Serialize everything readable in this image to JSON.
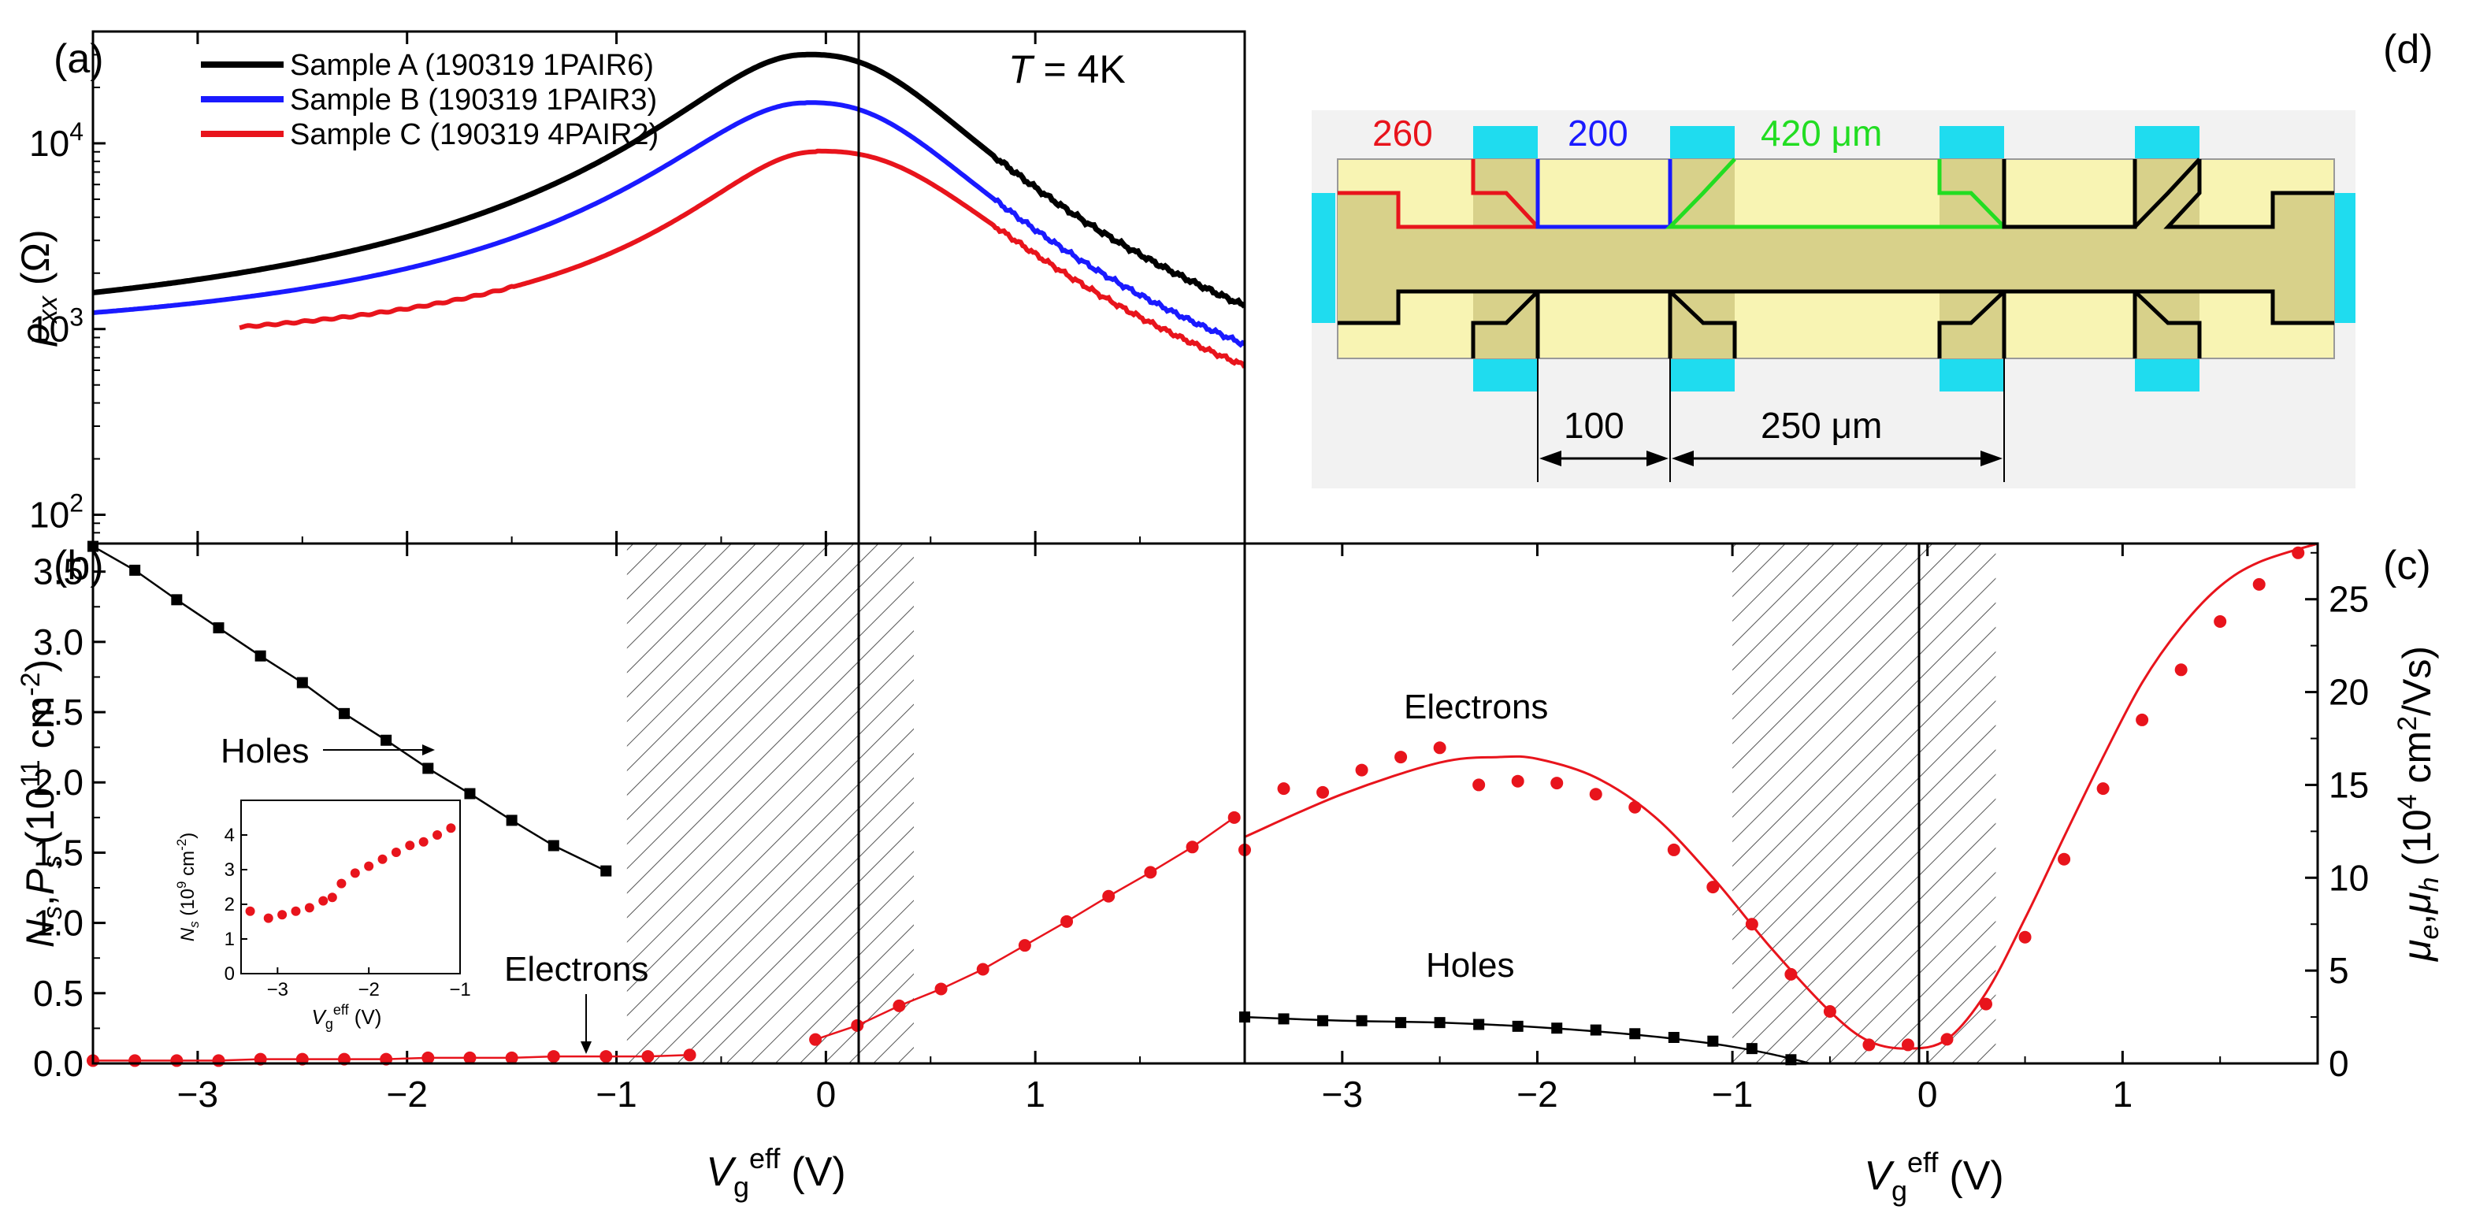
{
  "colors": {
    "black": "#000000",
    "blue": "#1a1aff",
    "red": "#e8141c",
    "cyan": "#1fdcef",
    "pad": "#d8d18a",
    "bar": "#f8f4b3",
    "bg": "#f2f2f2",
    "green": "#22dd22"
  },
  "chart_data": [
    {
      "panel": "(a)",
      "type": "line",
      "xlim": [
        -3.5,
        2.0
      ],
      "ylim": [
        70,
        40000
      ],
      "yscale": "log",
      "ylabel_main": "ρ",
      "ylabel_sub": "xx",
      "ylabel_unit": " (Ω)",
      "annotation_T": "T",
      "annotation_rest": " = 4K",
      "ytick_labels": [
        {
          "val": 100,
          "base": "10",
          "exp": "2"
        },
        {
          "val": 1000,
          "base": "10",
          "exp": "3"
        },
        {
          "val": 10000,
          "base": "10",
          "exp": "4"
        }
      ],
      "series": [
        {
          "name": "Sample A (190319 1PAIR6)",
          "color": "#000000",
          "v0": -0.1,
          "rmax": 30000,
          "rinf": 800,
          "sl": 0.56,
          "srp": 0.5,
          "r2": 0.63,
          "xstart": -3.5
        },
        {
          "name": "Sample B (190319 1PAIR3)",
          "color": "#1a1aff",
          "v0": -0.1,
          "rmax": 16500,
          "rinf": 780,
          "sl": 0.58,
          "srp": 0.5,
          "r2": 0.65,
          "xstart": -3.5
        },
        {
          "name": "Sample C (190319 4PAIR2)",
          "color": "#e8141c",
          "v0": -0.05,
          "rmax": 9000,
          "rinf": 740,
          "sl": 0.52,
          "srp": 0.5,
          "r2": 0.72,
          "xstart": -2.8
        }
      ]
    },
    {
      "panel": "(b)",
      "type": "scatter",
      "xlim": [
        -3.5,
        2.0
      ],
      "ylim": [
        0,
        3.7
      ],
      "ylabel": "N_s,P_s (10^11 cm^-2)",
      "xlabel": "V_g^eff (V)",
      "xtick_labels": [
        "−3",
        "−2",
        "−1",
        "0",
        "1"
      ],
      "ytick_labels": [
        "0.0",
        "0.5",
        "1.0",
        "1.5",
        "2.0",
        "2.5",
        "3.0",
        "3.5"
      ],
      "hatch_range": [
        -0.95,
        0.42
      ],
      "series": [
        {
          "name": "Holes",
          "color": "#000000",
          "x": [
            -3.5,
            -3.3,
            -3.1,
            -2.9,
            -2.7,
            -2.5,
            -2.3,
            -2.1,
            -1.9,
            -1.7,
            -1.5,
            -1.3,
            -1.05
          ],
          "y": [
            3.68,
            3.51,
            3.3,
            3.1,
            2.9,
            2.71,
            2.49,
            2.3,
            2.1,
            1.92,
            1.73,
            1.55,
            1.37
          ]
        },
        {
          "name": "Electrons",
          "color": "#e8141c",
          "x": [
            -3.5,
            -3.3,
            -3.1,
            -2.9,
            -2.7,
            -2.5,
            -2.3,
            -2.1,
            -1.9,
            -1.7,
            -1.5,
            -1.3,
            -1.05,
            -0.85,
            -0.65,
            -0.05,
            0.15,
            0.35,
            0.55,
            0.75,
            0.95,
            1.15,
            1.35,
            1.55,
            1.75,
            1.95
          ],
          "y": [
            0.02,
            0.02,
            0.02,
            0.02,
            0.03,
            0.03,
            0.03,
            0.03,
            0.04,
            0.04,
            0.04,
            0.05,
            0.05,
            0.05,
            0.06,
            0.17,
            0.27,
            0.41,
            0.53,
            0.67,
            0.84,
            1.01,
            1.19,
            1.36,
            1.54,
            1.75
          ]
        }
      ],
      "labels": {
        "holes": "Holes",
        "electrons": "Electrons"
      },
      "inset": {
        "xlim": [
          -3.4,
          -1.0
        ],
        "ylim": [
          0,
          5
        ],
        "ylabel": "N_s (10^9 cm^-2)",
        "xlabel": "V_g^eff (V)",
        "xtick_labels": [
          "−3",
          "−2",
          "−1"
        ],
        "ytick_labels": [
          "0",
          "1",
          "2",
          "3",
          "4"
        ],
        "x": [
          -3.3,
          -3.1,
          -2.95,
          -2.8,
          -2.65,
          -2.5,
          -2.4,
          -2.3,
          -2.15,
          -2.0,
          -1.85,
          -1.7,
          -1.55,
          -1.4,
          -1.25,
          -1.1
        ],
        "y": [
          1.8,
          1.6,
          1.7,
          1.8,
          1.9,
          2.1,
          2.2,
          2.6,
          2.9,
          3.1,
          3.3,
          3.5,
          3.7,
          3.8,
          4.0,
          4.2
        ]
      }
    },
    {
      "panel": "(c)",
      "type": "scatter",
      "xlim": [
        -3.5,
        2.0
      ],
      "ylim": [
        0,
        28
      ],
      "ylabel": "μ_e,μ_h (10^4 cm^2/Vs)",
      "xlabel": "V_g^eff (V)",
      "xtick_labels": [
        "−3",
        "−2",
        "−1",
        "0",
        "1"
      ],
      "ytick_labels": [
        "0",
        "5",
        "10",
        "15",
        "20",
        "25"
      ],
      "hatch_range": [
        -1.0,
        0.35
      ],
      "series": [
        {
          "name": "Electrons",
          "color": "#e8141c",
          "x": [
            -3.5,
            -3.3,
            -3.1,
            -2.9,
            -2.7,
            -2.5,
            -2.3,
            -2.1,
            -1.9,
            -1.7,
            -1.5,
            -1.3,
            -1.1,
            -0.9,
            -0.7,
            -0.5,
            -0.3,
            -0.1,
            0.1,
            0.3,
            0.5,
            0.7,
            0.9,
            1.1,
            1.3,
            1.5,
            1.7,
            1.9
          ],
          "y": [
            11.5,
            14.8,
            14.6,
            15.8,
            16.5,
            17.0,
            15.0,
            15.2,
            15.1,
            14.5,
            13.8,
            11.5,
            9.5,
            7.5,
            4.8,
            2.8,
            1.0,
            1.0,
            1.3,
            3.2,
            6.8,
            11.0,
            14.8,
            18.5,
            21.2,
            23.8,
            25.8,
            27.5
          ]
        },
        {
          "name": "Holes",
          "color": "#000000",
          "x": [
            -3.5,
            -3.3,
            -3.1,
            -2.9,
            -2.7,
            -2.5,
            -2.3,
            -2.1,
            -1.9,
            -1.7,
            -1.5,
            -1.3,
            -1.1,
            -0.9,
            -0.7
          ],
          "y": [
            2.5,
            2.4,
            2.3,
            2.3,
            2.2,
            2.2,
            2.1,
            2.0,
            1.9,
            1.8,
            1.6,
            1.4,
            1.2,
            0.8,
            0.2
          ]
        }
      ],
      "electron_fit": {
        "x": [
          -3.5,
          -3.0,
          -2.5,
          -2.2,
          -2.0,
          -1.7,
          -1.4,
          -1.1,
          -0.8,
          -0.5,
          -0.3,
          -0.1,
          0.1,
          0.3,
          0.5,
          0.7,
          0.9,
          1.1,
          1.3,
          1.5,
          1.7,
          2.0
        ],
        "y": [
          12.2,
          14.5,
          16.2,
          16.5,
          16.4,
          15.4,
          13.3,
          10.0,
          6.2,
          2.8,
          1.2,
          0.8,
          1.3,
          3.8,
          7.8,
          12.2,
          16.5,
          20.5,
          23.5,
          25.7,
          27.0,
          28.0
        ]
      },
      "hole_fit": {
        "x": [
          -3.5,
          -3.0,
          -2.5,
          -2.0,
          -1.5,
          -1.2,
          -1.0,
          -0.8,
          -0.6
        ],
        "y": [
          2.5,
          2.3,
          2.2,
          1.95,
          1.55,
          1.2,
          0.9,
          0.5,
          0.0
        ]
      },
      "labels": {
        "electrons": "Electrons",
        "holes": "Holes"
      }
    },
    {
      "panel": "(d)",
      "type": "diagram",
      "dims_top": [
        {
          "text": "260",
          "color": "#e8141c"
        },
        {
          "text": "200",
          "color": "#1a1aff"
        },
        {
          "text": "420 μm",
          "color": "#22dd22"
        }
      ],
      "dims_bottom": [
        "100",
        "250 μm"
      ]
    }
  ],
  "shared_xlabel": {
    "main": "V",
    "sub": "g",
    "sup": "eff",
    "unit": "(V)"
  }
}
